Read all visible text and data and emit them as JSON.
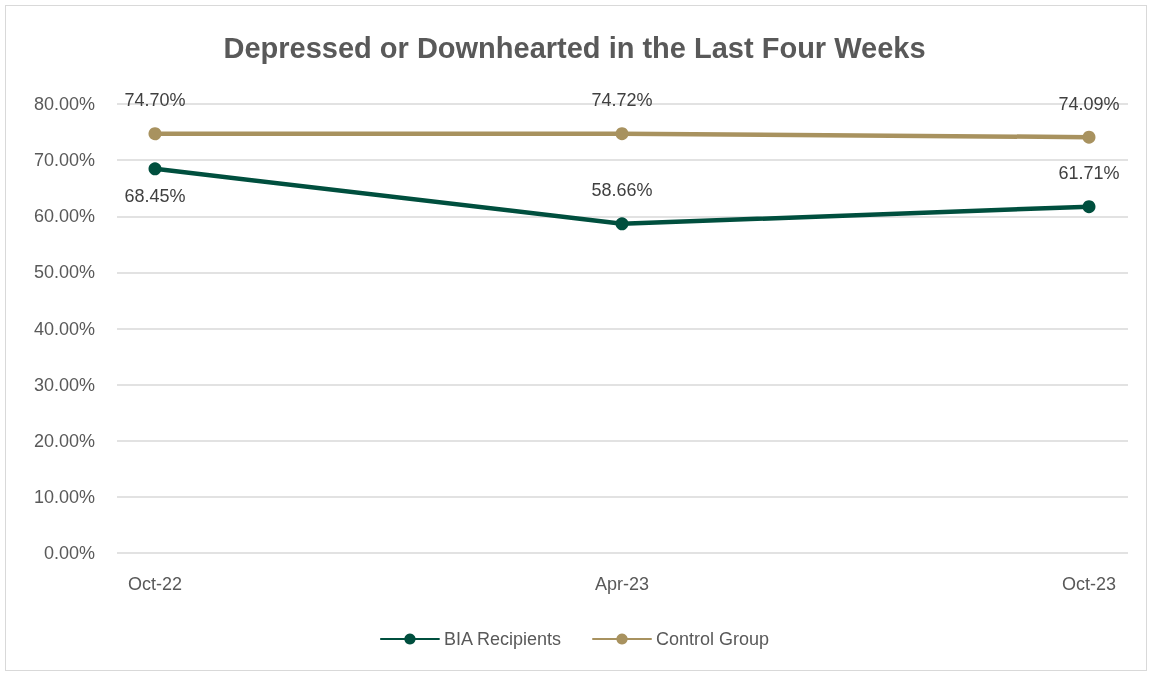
{
  "chart_data": {
    "type": "line",
    "title": "Depressed or Downhearted in the Last Four Weeks",
    "categories": [
      "Oct-22",
      "Apr-23",
      "Oct-23"
    ],
    "series": [
      {
        "name": "BIA Recipients",
        "color": "#004f3e",
        "values": [
          68.45,
          58.66,
          61.71
        ],
        "value_labels": [
          "68.45%",
          "58.66%",
          "61.71%"
        ]
      },
      {
        "name": "Control Group",
        "color": "#a8925f",
        "values": [
          74.7,
          74.72,
          74.09
        ],
        "value_labels": [
          "74.70%",
          "74.72%",
          "74.09%"
        ]
      }
    ],
    "ylim": [
      0,
      80
    ],
    "yticks": [
      {
        "value": 0,
        "label": "0.00%"
      },
      {
        "value": 10,
        "label": "10.00%"
      },
      {
        "value": 20,
        "label": "20.00%"
      },
      {
        "value": 30,
        "label": "30.00%"
      },
      {
        "value": 40,
        "label": "40.00%"
      },
      {
        "value": 50,
        "label": "50.00%"
      },
      {
        "value": 60,
        "label": "60.00%"
      },
      {
        "value": 70,
        "label": "70.00%"
      },
      {
        "value": 80,
        "label": "80.00%"
      }
    ],
    "grid": "y",
    "legend": "bottom",
    "marker": "circle",
    "line_style": "solid"
  }
}
